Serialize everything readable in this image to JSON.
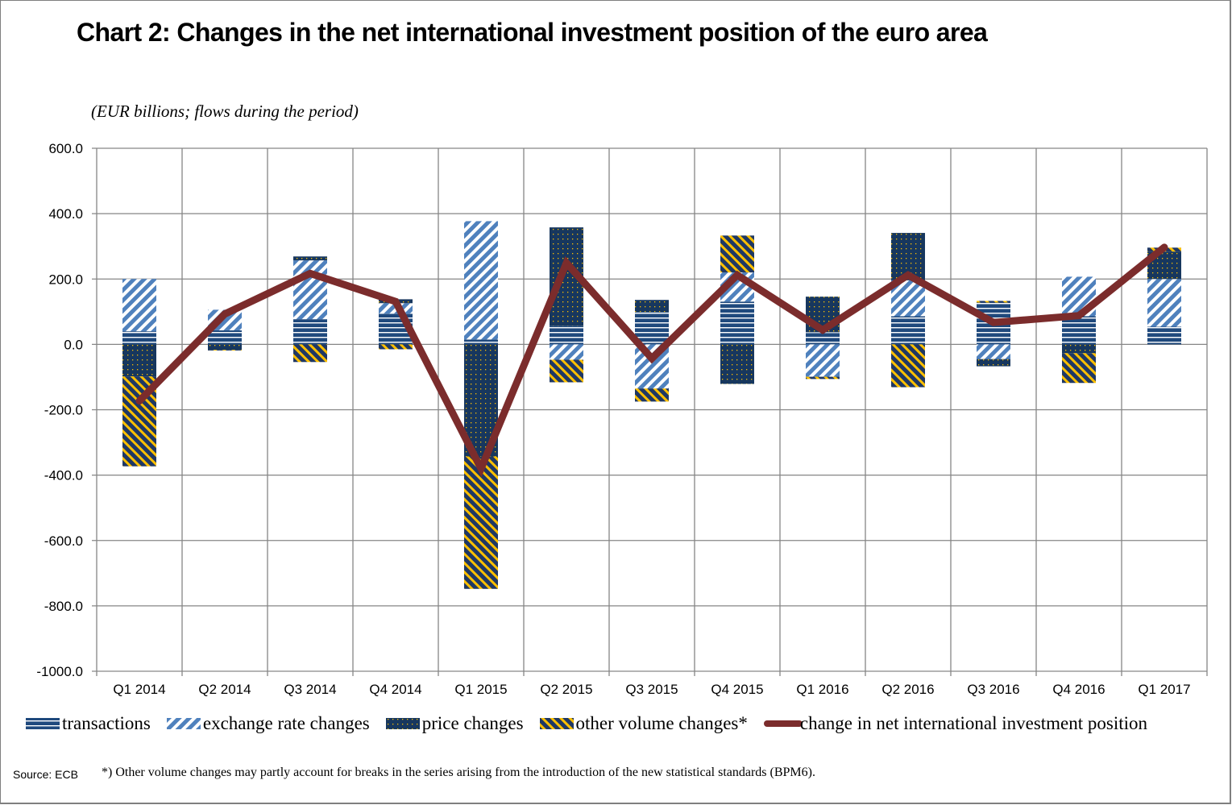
{
  "chart_data": {
    "type": "bar",
    "stacked": true,
    "title": "Chart 2: Changes in the net international investment position of the euro area",
    "subtitle": "(EUR billions; flows during the period)",
    "xlabel": "",
    "ylabel": "",
    "ylim": [
      -1000,
      600
    ],
    "yticks": [
      600,
      400,
      200,
      0,
      -200,
      -400,
      -600,
      -800,
      -1000
    ],
    "ytick_labels": [
      "600.0",
      "400.0",
      "200.0",
      "0.0",
      "-200.0",
      "-400.0",
      "-600.0",
      "-800.0",
      "-1000.0"
    ],
    "grid": true,
    "legend_position": "bottom",
    "categories": [
      "Q1 2014",
      "Q2 2014",
      "Q3 2014",
      "Q4 2014",
      "Q1 2015",
      "Q2 2015",
      "Q3 2015",
      "Q4 2015",
      "Q1 2016",
      "Q2 2016",
      "Q3 2016",
      "Q4 2016",
      "Q1 2017"
    ],
    "series": [
      {
        "name": "transactions",
        "kind": "bar",
        "pattern": "horizontal-lines",
        "values": [
          40,
          43,
          77,
          94,
          15,
          57,
          99,
          131,
          37,
          86,
          128,
          86,
          54
        ]
      },
      {
        "name": "exchange rate changes",
        "kind": "bar",
        "pattern": "diagonal-stripes",
        "values": [
          160,
          63,
          180,
          32,
          362,
          -47,
          -135,
          89,
          -99,
          110,
          -45,
          121,
          146
        ]
      },
      {
        "name": "price changes",
        "kind": "bar",
        "pattern": "dots",
        "values": [
          -98,
          -17,
          12,
          12,
          -343,
          301,
          37,
          -121,
          109,
          145,
          -22,
          -27,
          84
        ]
      },
      {
        "name": "other volume changes*",
        "kind": "bar",
        "pattern": "yellow-stripes",
        "values": [
          -275,
          -2,
          -54,
          -15,
          -405,
          -69,
          -40,
          113,
          -7,
          -131,
          5,
          -91,
          12
        ]
      },
      {
        "name": "change in net international investment position",
        "kind": "line",
        "values": [
          -173,
          93,
          217,
          131,
          -380,
          249,
          -43,
          212,
          44,
          212,
          67,
          88,
          297
        ]
      }
    ],
    "colors": {
      "transactions": "#1f497d",
      "exchange_rate": "#4f81bd",
      "price_dark": "#17375e",
      "price_dot": "#ffc000",
      "other_stripe": "#ffc000",
      "line": "#7b2c2c",
      "grid": "#868686"
    },
    "source": "Source: ECB",
    "footnote": "*) Other volume changes may partly account for breaks in the series  arising  from the introduction of  the new statistical standards (BPM6)."
  }
}
